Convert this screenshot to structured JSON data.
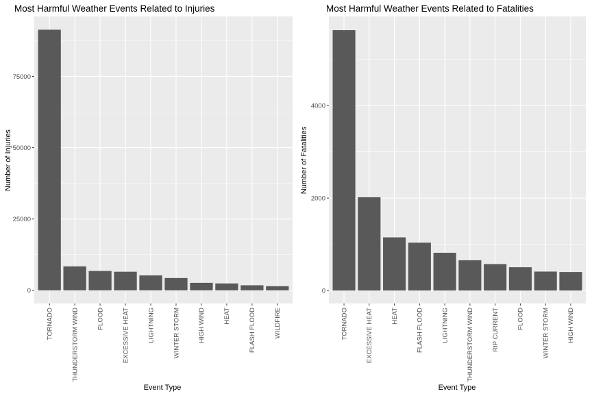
{
  "chart_data": [
    {
      "type": "bar",
      "title": "Most Harmful Weather Events Related to Injuries",
      "xlabel": "Event Type",
      "ylabel": "Number of Injuries",
      "categories": [
        "TORNADO",
        "THUNDERSTORM WIND",
        "FLOOD",
        "EXCESSIVE HEAT",
        "LIGHTNING",
        "WINTER STORM",
        "HIGH WIND",
        "HEAT",
        "FLASH FLOOD",
        "WILDFIRE"
      ],
      "values": [
        91346,
        8400,
        6789,
        6525,
        5230,
        4321,
        2631,
        2420,
        1777,
        1456
      ],
      "yticks": [
        0,
        25000,
        50000,
        75000
      ],
      "ylim": [
        -4600,
        96000
      ],
      "grid": true,
      "color": "#595959",
      "background": "#ebebeb"
    },
    {
      "type": "bar",
      "title": "Most Harmful Weather Events Related to Fatalities",
      "xlabel": "Event Type",
      "ylabel": "Number of Fatalities",
      "categories": [
        "TORNADO",
        "EXCESSIVE HEAT",
        "HEAT",
        "FLASH FLOOD",
        "LIGHTNING",
        "THUNDERSTORM WIND",
        "RIP CURRENT",
        "FLOOD",
        "WINTER STORM",
        "HIGH WIND"
      ],
      "values": [
        5633,
        2018,
        1150,
        1035,
        817,
        655,
        572,
        504,
        410,
        400
      ],
      "yticks": [
        0,
        2000,
        4000
      ],
      "ylim": [
        -280,
        5930
      ],
      "grid": true,
      "color": "#595959",
      "background": "#ebebeb"
    }
  ]
}
